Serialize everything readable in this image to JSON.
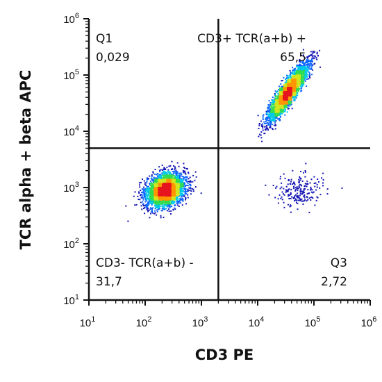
{
  "chart_data": {
    "type": "scatter",
    "subtype": "flow-cytometry-density-dot-plot",
    "xlabel": "CD3 PE",
    "ylabel": "TCR alpha + beta APC",
    "x_scale": "log",
    "y_scale": "log",
    "xlim": [
      10,
      1000000
    ],
    "ylim": [
      10,
      1000000
    ],
    "x_ticks": [
      {
        "base": "10",
        "exp": "1",
        "value": 10
      },
      {
        "base": "10",
        "exp": "2",
        "value": 100
      },
      {
        "base": "10",
        "exp": "3",
        "value": 1000
      },
      {
        "base": "10",
        "exp": "4",
        "value": 10000
      },
      {
        "base": "10",
        "exp": "5",
        "value": 100000
      },
      {
        "base": "10",
        "exp": "6",
        "value": 1000000
      }
    ],
    "y_ticks": [
      {
        "base": "10",
        "exp": "1",
        "value": 10
      },
      {
        "base": "10",
        "exp": "2",
        "value": 100
      },
      {
        "base": "10",
        "exp": "3",
        "value": 1000
      },
      {
        "base": "10",
        "exp": "4",
        "value": 10000
      },
      {
        "base": "10",
        "exp": "5",
        "value": 100000
      },
      {
        "base": "10",
        "exp": "6",
        "value": 1000000
      }
    ],
    "gate": {
      "x": 2000,
      "y": 5000
    },
    "quadrants": [
      {
        "position": "top-left",
        "name": "Q1",
        "percent": "0,029"
      },
      {
        "position": "top-right",
        "name": "CD3+ TCR(a+b) +",
        "percent": "65,5"
      },
      {
        "position": "bottom-left",
        "name": "CD3- TCR(a+b) -",
        "percent": "31,7"
      },
      {
        "position": "bottom-right",
        "name": "Q3",
        "percent": "2,72"
      }
    ],
    "populations": [
      {
        "center_x": 230,
        "center_y": 900,
        "spread_log_x": 0.17,
        "spread_log_y": 0.15,
        "correlation": 0.25,
        "points": 3200
      },
      {
        "center_x": 35000,
        "center_y": 50000,
        "spread_log_x": 0.18,
        "spread_log_y": 0.26,
        "correlation": 0.9,
        "points": 3000
      },
      {
        "center_x": 50000,
        "center_y": 850,
        "spread_log_x": 0.22,
        "spread_log_y": 0.15,
        "correlation": 0.1,
        "points": 200
      }
    ],
    "density_colors": [
      "#1414b4",
      "#0a64ff",
      "#00c8e6",
      "#32dc50",
      "#d2e61e",
      "#ff9600",
      "#e6141e"
    ],
    "grid": false,
    "legend": "none"
  }
}
